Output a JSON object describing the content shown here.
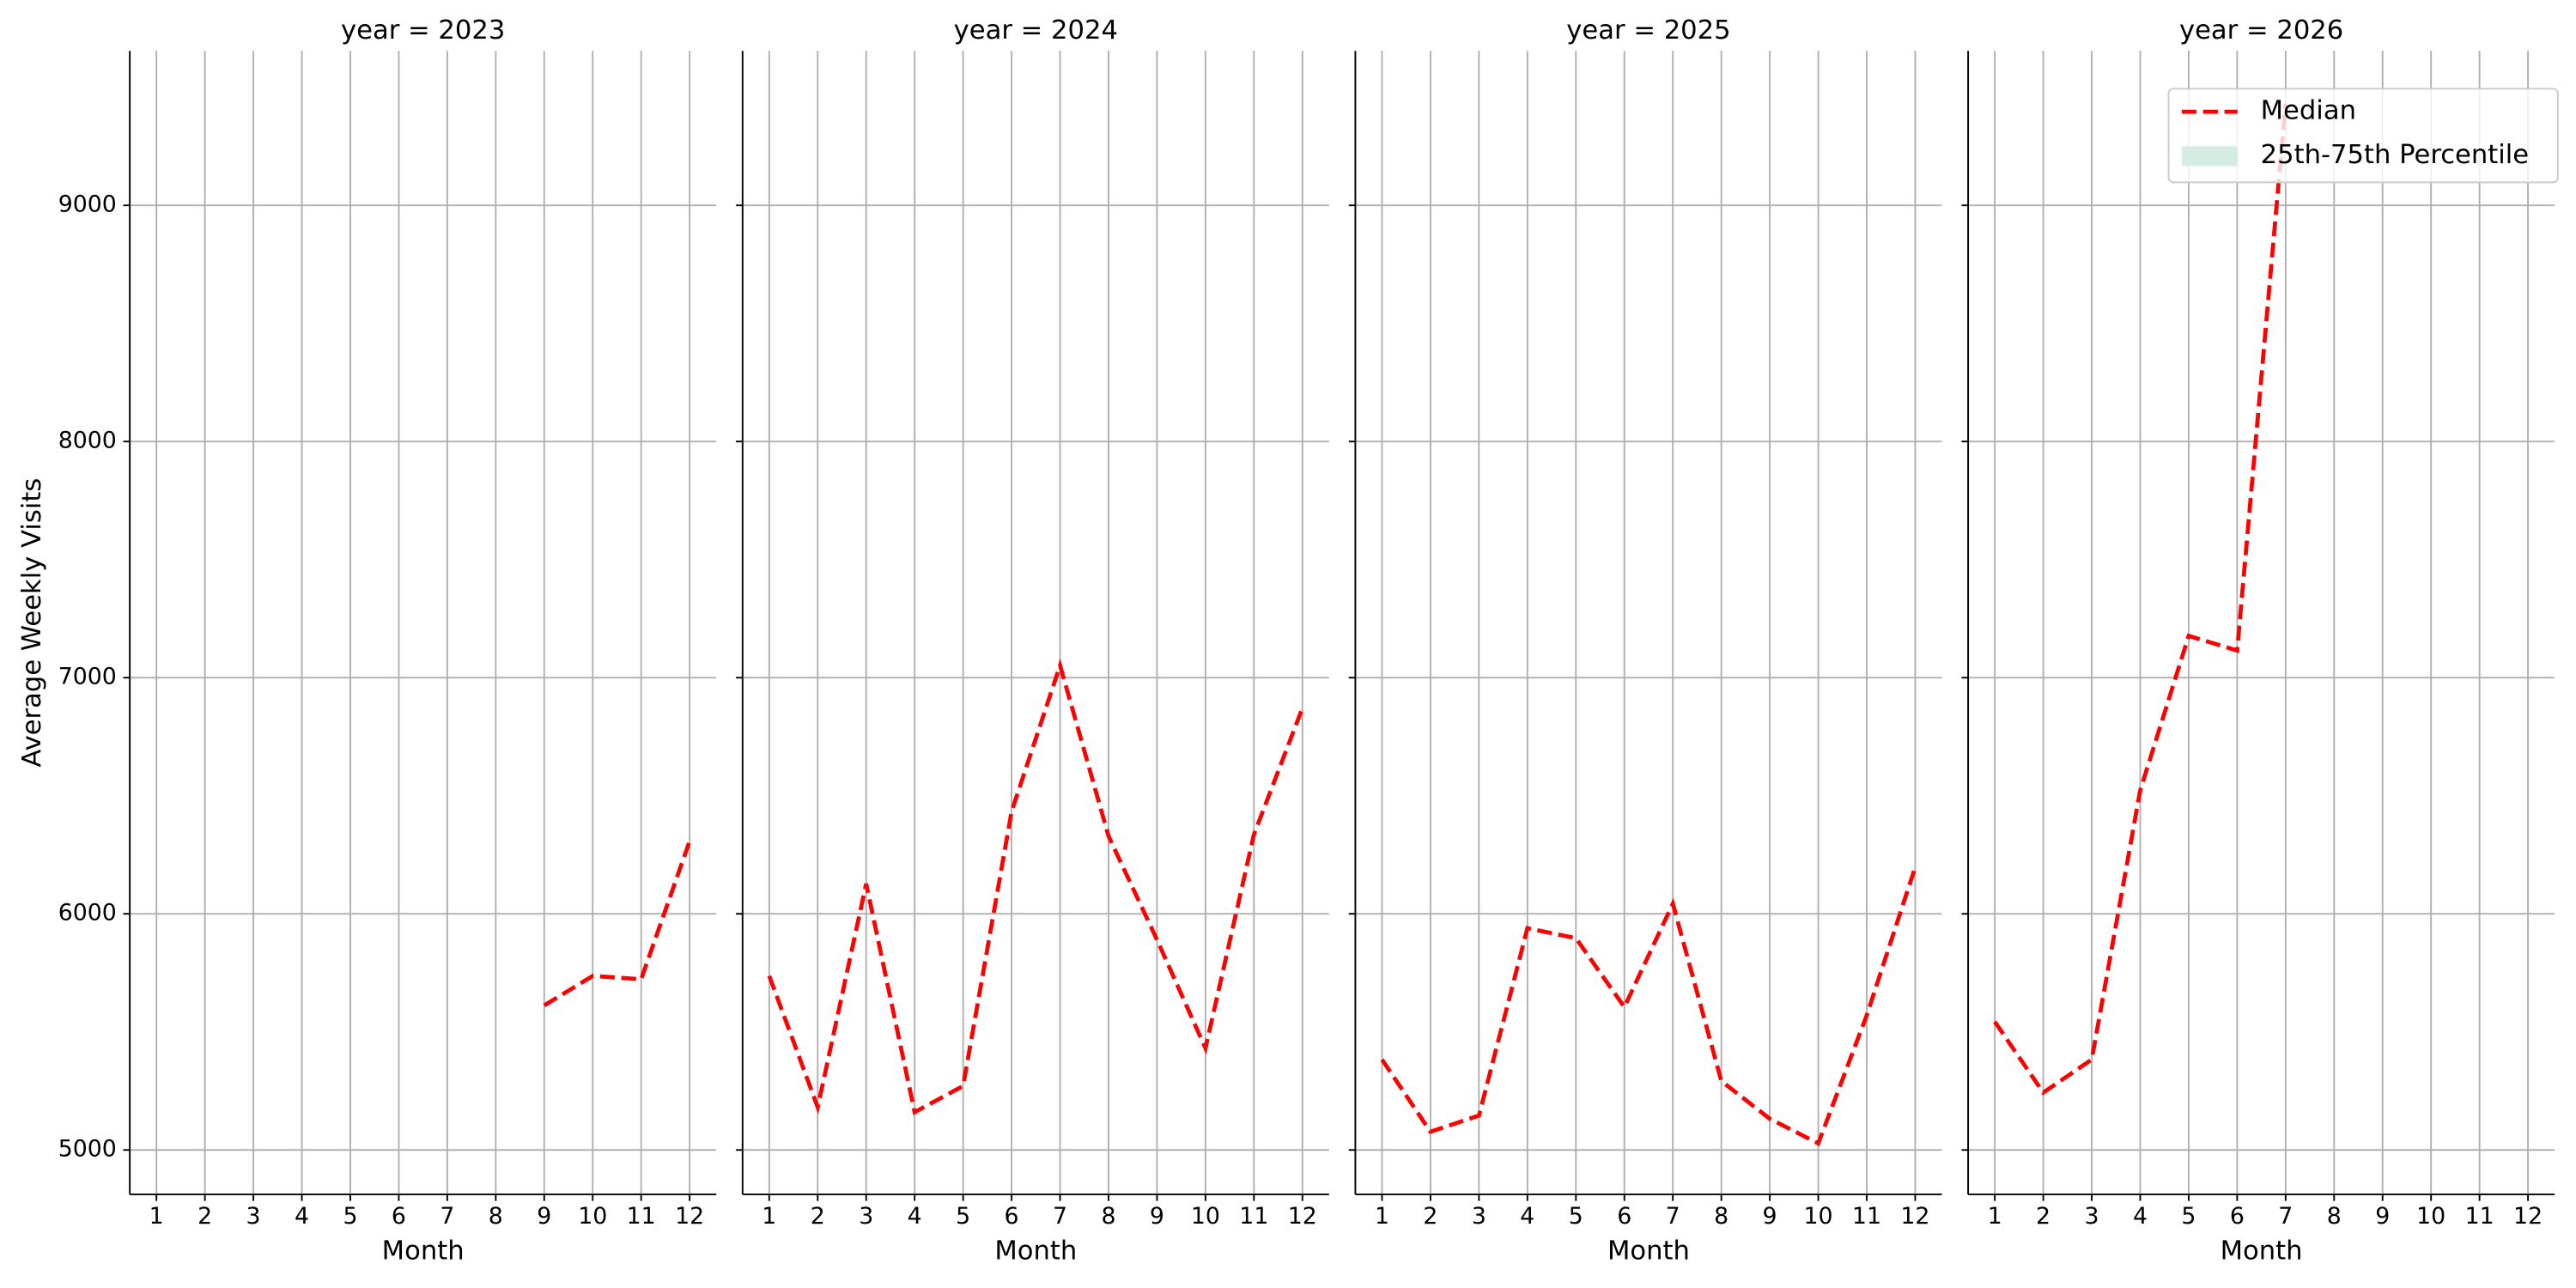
{
  "chart_data": {
    "type": "line",
    "ylabel": "Average Weekly Visits",
    "xlabel": "Month",
    "x": [
      1,
      2,
      3,
      4,
      5,
      6,
      7,
      8,
      9,
      10,
      11,
      12
    ],
    "xlim": [
      0.45,
      12.55
    ],
    "ylim": [
      4812,
      9654
    ],
    "yticks": [
      5000,
      6000,
      7000,
      8000,
      9000
    ],
    "grid": true,
    "legend": "upper right",
    "series": [
      {
        "name": "Median",
        "color": "#ff0000",
        "dash": true
      }
    ],
    "band": {
      "name": "25th-75th Percentile",
      "color": "#d4ece2"
    },
    "facets": [
      {
        "title": "year = 2023",
        "values": [
          null,
          null,
          null,
          null,
          null,
          null,
          null,
          null,
          5612,
          5737,
          5723,
          6308
        ]
      },
      {
        "title": "year = 2024",
        "values": [
          5737,
          5181,
          6127,
          5160,
          5271,
          6433,
          7052,
          6329,
          5890,
          5431,
          6336,
          6871
        ]
      },
      {
        "title": "year = 2025",
        "values": [
          5383,
          5077,
          5146,
          5939,
          5897,
          5605,
          6043,
          5292,
          5132,
          5028,
          5570,
          6197
        ]
      },
      {
        "title": "year = 2026",
        "values": [
          5543,
          5243,
          5383,
          6523,
          7177,
          7115,
          9431,
          null,
          null,
          null,
          null,
          null
        ]
      }
    ]
  }
}
